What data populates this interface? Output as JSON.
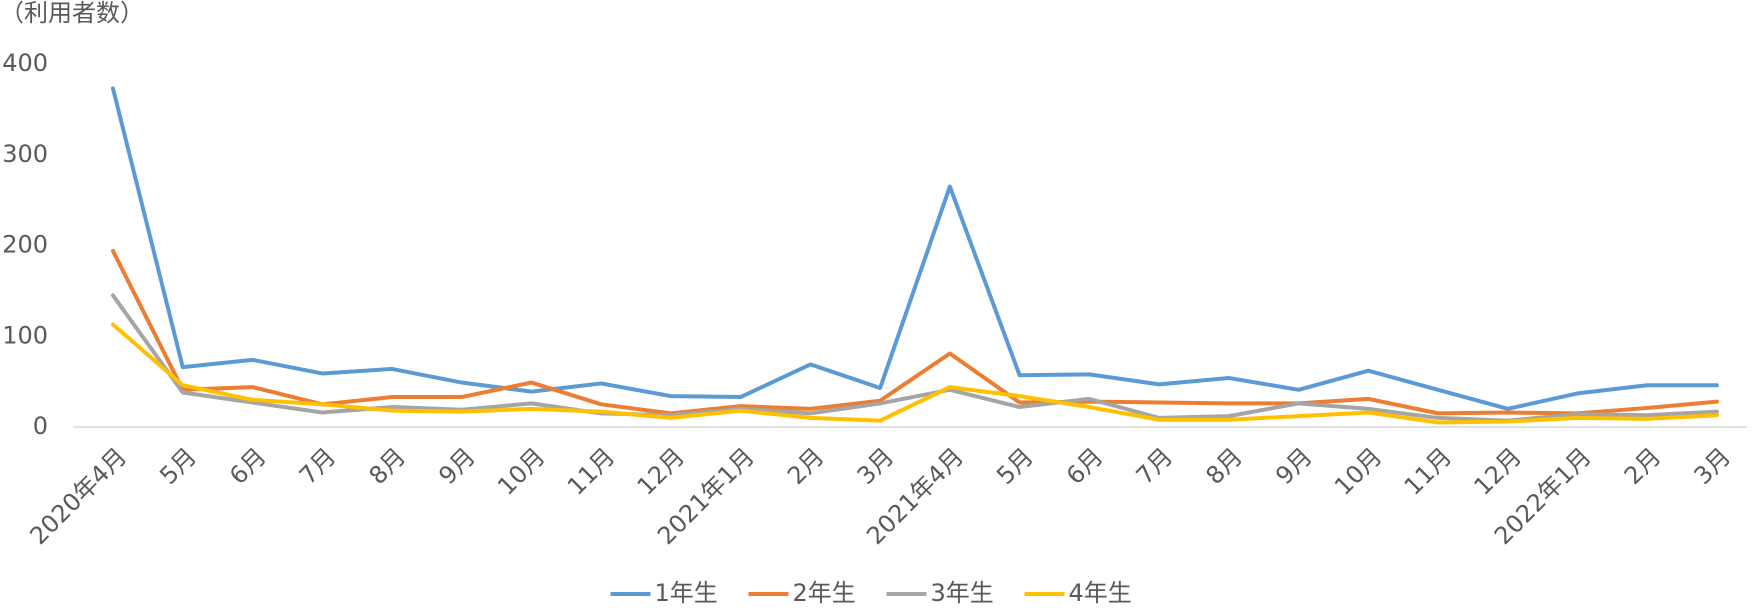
{
  "chart_data": {
    "type": "line",
    "y_axis_label": "（利用者数）",
    "categories": [
      "2020年4月",
      "5月",
      "6月",
      "7月",
      "8月",
      "9月",
      "10月",
      "11月",
      "12月",
      "2021年1月",
      "2月",
      "3月",
      "2021年4月",
      "5月",
      "6月",
      "7月",
      "8月",
      "9月",
      "10月",
      "11月",
      "12月",
      "2022年1月",
      "2月",
      "3月"
    ],
    "series": [
      {
        "name": "1年生",
        "color": "#5b9bd5",
        "values": [
          373,
          66,
          74,
          59,
          64,
          49,
          39,
          48,
          34,
          33,
          69,
          43,
          265,
          57,
          58,
          47,
          54,
          41,
          62,
          41,
          20,
          37,
          46,
          46
        ]
      },
      {
        "name": "2年生",
        "color": "#ed7d31",
        "values": [
          194,
          41,
          44,
          25,
          33,
          33,
          49,
          25,
          15,
          23,
          20,
          29,
          81,
          27,
          28,
          27,
          26,
          26,
          31,
          15,
          16,
          15,
          21,
          28
        ]
      },
      {
        "name": "3年生",
        "color": "#a5a5a5",
        "values": [
          145,
          38,
          27,
          16,
          22,
          19,
          26,
          15,
          13,
          20,
          15,
          26,
          41,
          22,
          31,
          10,
          12,
          26,
          20,
          10,
          7,
          14,
          13,
          17
        ]
      },
      {
        "name": "4年生",
        "color": "#ffc000",
        "values": [
          113,
          46,
          30,
          25,
          18,
          17,
          20,
          17,
          10,
          18,
          10,
          7,
          44,
          34,
          22,
          8,
          8,
          12,
          16,
          5,
          6,
          10,
          9,
          13
        ]
      }
    ],
    "ylim": [
      0,
      400
    ],
    "yticks": [
      0,
      100,
      200,
      300,
      400
    ],
    "grid": false,
    "legend": "bottom"
  }
}
